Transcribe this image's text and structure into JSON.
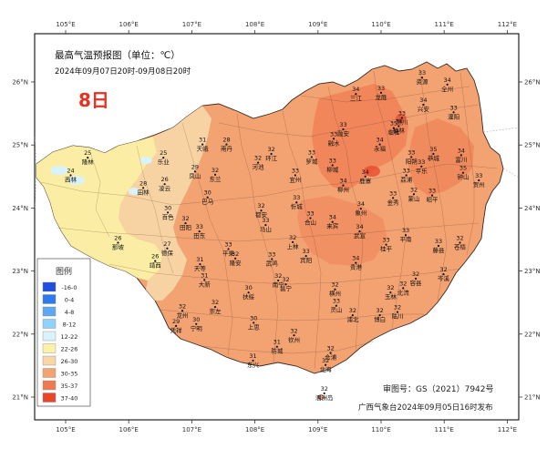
{
  "title": "最高气温预报图（单位：℃）",
  "time_range": "2024年09月07日20时-09月08日20时",
  "day_label": "8日",
  "legend": {
    "title": "图例",
    "items": [
      {
        "label": "-16-0",
        "color": "#1f4fe0"
      },
      {
        "label": "0-4",
        "color": "#2d79ef"
      },
      {
        "label": "4-8",
        "color": "#5aa8f7"
      },
      {
        "label": "8-12",
        "color": "#8fd2fb"
      },
      {
        "label": "12-22",
        "color": "#d8f3fb"
      },
      {
        "label": "22-26",
        "color": "#fbf1a7"
      },
      {
        "label": "26-30",
        "color": "#f7d6a7"
      },
      {
        "label": "30-35",
        "color": "#f3a272"
      },
      {
        "label": "35-37",
        "color": "#f07a50"
      },
      {
        "label": "37-40",
        "color": "#e8452c"
      }
    ]
  },
  "axes": {
    "lon_labels": [
      "105°E",
      "106°E",
      "107°E",
      "108°E",
      "109°E",
      "110°E",
      "111°E",
      "112°E"
    ],
    "lat_labels": [
      "26°N",
      "25°N",
      "24°N",
      "23°N",
      "22°N",
      "21°N"
    ]
  },
  "map_review_no": "审图号：GS（2021）7942号",
  "publisher": "广西气象台2024年09月05日16时发布",
  "map_colors": {
    "region_base": "#f3a272",
    "region_hot": "#ef8358",
    "region_warm": "#f7d6a7",
    "region_cool": "#fbf1a7",
    "region_cold": "#d8f3fb",
    "border": "#3a2a20",
    "frame": "#222222",
    "day_label": "#e8311f"
  },
  "stations": [
    {
      "name": "隆林",
      "temp": "25",
      "lon": 105.35,
      "lat": 24.77
    },
    {
      "name": "西林",
      "temp": "24",
      "lon": 105.08,
      "lat": 24.49
    },
    {
      "name": "乐业",
      "temp": "25",
      "lon": 106.55,
      "lat": 24.77
    },
    {
      "name": "天峨",
      "temp": "31",
      "lon": 107.17,
      "lat": 24.98
    },
    {
      "name": "南丹",
      "temp": "28",
      "lon": 107.55,
      "lat": 24.98
    },
    {
      "name": "凌云",
      "temp": "26",
      "lon": 106.57,
      "lat": 24.35
    },
    {
      "name": "田林",
      "temp": "28",
      "lon": 106.23,
      "lat": 24.29
    },
    {
      "name": "凤山",
      "temp": "29",
      "lon": 107.05,
      "lat": 24.55
    },
    {
      "name": "东兰",
      "temp": "32",
      "lon": 107.37,
      "lat": 24.5
    },
    {
      "name": "河池",
      "temp": "32",
      "lon": 108.05,
      "lat": 24.69
    },
    {
      "name": "环江",
      "temp": "32",
      "lon": 108.26,
      "lat": 24.83
    },
    {
      "name": "罗城",
      "temp": "33",
      "lon": 108.9,
      "lat": 24.78
    },
    {
      "name": "融水",
      "temp": "33",
      "lon": 109.25,
      "lat": 25.07
    },
    {
      "name": "三江",
      "temp": "34",
      "lon": 109.6,
      "lat": 25.78
    },
    {
      "name": "龙胜",
      "temp": "33",
      "lon": 110.0,
      "lat": 25.8
    },
    {
      "name": "资源",
      "temp": "33",
      "lon": 110.65,
      "lat": 26.04
    },
    {
      "name": "全州",
      "temp": "34",
      "lon": 111.05,
      "lat": 25.93
    },
    {
      "name": "兴安",
      "temp": "34",
      "lon": 110.67,
      "lat": 25.61
    },
    {
      "name": "灌阳",
      "temp": "33",
      "lon": 111.15,
      "lat": 25.49
    },
    {
      "name": "临桂",
      "temp": "35",
      "lon": 110.2,
      "lat": 25.24
    },
    {
      "name": "永福",
      "temp": "34",
      "lon": 109.98,
      "lat": 24.98
    },
    {
      "name": "融安",
      "temp": "33",
      "lon": 109.4,
      "lat": 25.22
    },
    {
      "name": "柳城",
      "temp": "33",
      "lon": 109.23,
      "lat": 24.65
    },
    {
      "name": "鹿寨",
      "temp": "34",
      "lon": 109.75,
      "lat": 24.47
    },
    {
      "name": "阳朔",
      "temp": "33",
      "lon": 110.48,
      "lat": 24.78
    },
    {
      "name": "恭城",
      "temp": "35",
      "lon": 110.83,
      "lat": 24.83
    },
    {
      "name": "平乐",
      "temp": "33",
      "lon": 110.64,
      "lat": 24.63
    },
    {
      "name": "荔浦",
      "temp": "33",
      "lon": 110.4,
      "lat": 24.49
    },
    {
      "name": "钟山",
      "temp": "35",
      "lon": 111.3,
      "lat": 24.53
    },
    {
      "name": "富川",
      "temp": "34",
      "lon": 111.27,
      "lat": 24.81
    },
    {
      "name": "贺州",
      "temp": "33",
      "lon": 111.55,
      "lat": 24.41
    },
    {
      "name": "昭平",
      "temp": "33",
      "lon": 110.81,
      "lat": 24.17
    },
    {
      "name": "蒙山",
      "temp": "32",
      "lon": 110.52,
      "lat": 24.19
    },
    {
      "name": "金秀",
      "temp": "33",
      "lon": 110.19,
      "lat": 24.13
    },
    {
      "name": "象州",
      "temp": "34",
      "lon": 109.68,
      "lat": 23.96
    },
    {
      "name": "来宾",
      "temp": "34",
      "lon": 109.23,
      "lat": 23.75
    },
    {
      "name": "忻城",
      "temp": "33",
      "lon": 108.66,
      "lat": 24.06
    },
    {
      "name": "宜州",
      "temp": "33",
      "lon": 108.64,
      "lat": 24.49
    },
    {
      "name": "都安",
      "temp": "32",
      "lon": 108.1,
      "lat": 23.93
    },
    {
      "name": "马山",
      "temp": "33",
      "lon": 108.17,
      "lat": 23.7
    },
    {
      "name": "巴马",
      "temp": "30",
      "lon": 107.25,
      "lat": 24.14
    },
    {
      "name": "百色",
      "temp": "30",
      "lon": 106.62,
      "lat": 23.9
    },
    {
      "name": "田阳",
      "temp": "32",
      "lon": 106.9,
      "lat": 23.73
    },
    {
      "name": "田东",
      "temp": "33",
      "lon": 107.12,
      "lat": 23.6
    },
    {
      "name": "平果",
      "temp": "33",
      "lon": 107.58,
      "lat": 23.32
    },
    {
      "name": "德保",
      "temp": "27",
      "lon": 106.61,
      "lat": 23.33
    },
    {
      "name": "靖西",
      "temp": "26",
      "lon": 106.42,
      "lat": 23.13
    },
    {
      "name": "那坡",
      "temp": "26",
      "lon": 105.83,
      "lat": 23.42
    },
    {
      "name": "天等",
      "temp": "31",
      "lon": 107.13,
      "lat": 23.08
    },
    {
      "name": "隆安",
      "temp": "32",
      "lon": 107.69,
      "lat": 23.17
    },
    {
      "name": "武鸣",
      "temp": "33",
      "lon": 108.27,
      "lat": 23.16
    },
    {
      "name": "上林",
      "temp": "32",
      "lon": 108.6,
      "lat": 23.43
    },
    {
      "name": "宾阳",
      "temp": "33",
      "lon": 108.81,
      "lat": 23.21
    },
    {
      "name": "武宣",
      "temp": "34",
      "lon": 109.66,
      "lat": 23.6
    },
    {
      "name": "桂平",
      "temp": "33",
      "lon": 110.08,
      "lat": 23.39
    },
    {
      "name": "平南",
      "temp": "33",
      "lon": 110.39,
      "lat": 23.54
    },
    {
      "name": "藤县",
      "temp": "33",
      "lon": 110.91,
      "lat": 23.37
    },
    {
      "name": "苍梧",
      "temp": "32",
      "lon": 111.25,
      "lat": 23.42
    },
    {
      "name": "岑溪",
      "temp": "32",
      "lon": 110.99,
      "lat": 22.92
    },
    {
      "name": "容县",
      "temp": "32",
      "lon": 110.55,
      "lat": 22.85
    },
    {
      "name": "北流",
      "temp": "32",
      "lon": 110.35,
      "lat": 22.7
    },
    {
      "name": "玉林",
      "temp": "32",
      "lon": 110.15,
      "lat": 22.63
    },
    {
      "name": "贵港",
      "temp": "34",
      "lon": 109.6,
      "lat": 23.1
    },
    {
      "name": "横州",
      "temp": "32",
      "lon": 109.27,
      "lat": 22.68
    },
    {
      "name": "灵山",
      "temp": "33",
      "lon": 109.29,
      "lat": 22.42
    },
    {
      "name": "浦北",
      "temp": "32",
      "lon": 109.55,
      "lat": 22.27
    },
    {
      "name": "博白",
      "temp": "32",
      "lon": 109.98,
      "lat": 22.27
    },
    {
      "name": "陆川",
      "temp": "32",
      "lon": 110.26,
      "lat": 22.32
    },
    {
      "name": "南宁",
      "temp": "32",
      "lon": 108.37,
      "lat": 22.82
    },
    {
      "name": "邕宁",
      "temp": "32",
      "lon": 108.49,
      "lat": 22.76
    },
    {
      "name": "扶绥",
      "temp": "30",
      "lon": 107.9,
      "lat": 22.63
    },
    {
      "name": "大新",
      "temp": "31",
      "lon": 107.2,
      "lat": 22.83
    },
    {
      "name": "崇左",
      "temp": "32",
      "lon": 107.37,
      "lat": 22.4
    },
    {
      "name": "龙州",
      "temp": "32",
      "lon": 106.85,
      "lat": 22.34
    },
    {
      "name": "宁明",
      "temp": "30",
      "lon": 107.07,
      "lat": 22.13
    },
    {
      "name": "凭祥",
      "temp": "29",
      "lon": 106.75,
      "lat": 22.1
    },
    {
      "name": "上思",
      "temp": "30",
      "lon": 107.98,
      "lat": 22.15
    },
    {
      "name": "钦州",
      "temp": "32",
      "lon": 108.62,
      "lat": 21.95
    },
    {
      "name": "防城",
      "temp": "31",
      "lon": 108.35,
      "lat": 21.77
    },
    {
      "name": "东兴",
      "temp": "31",
      "lon": 107.97,
      "lat": 21.55
    },
    {
      "name": "合浦",
      "temp": "32",
      "lon": 109.2,
      "lat": 21.67
    },
    {
      "name": "北海",
      "temp": "32",
      "lon": 109.12,
      "lat": 21.48
    },
    {
      "name": "涠洲岛",
      "temp": "32",
      "lon": 109.1,
      "lat": 21.03
    },
    {
      "name": "合山",
      "temp": "33",
      "lon": 108.88,
      "lat": 23.81
    },
    {
      "name": "柳州",
      "temp": "34",
      "lon": 109.4,
      "lat": 24.33
    },
    {
      "name": "桂林",
      "temp": "34",
      "lon": 110.28,
      "lat": 25.27
    },
    {
      "name": "灵川",
      "temp": "33",
      "lon": 110.33,
      "lat": 25.4
    }
  ]
}
